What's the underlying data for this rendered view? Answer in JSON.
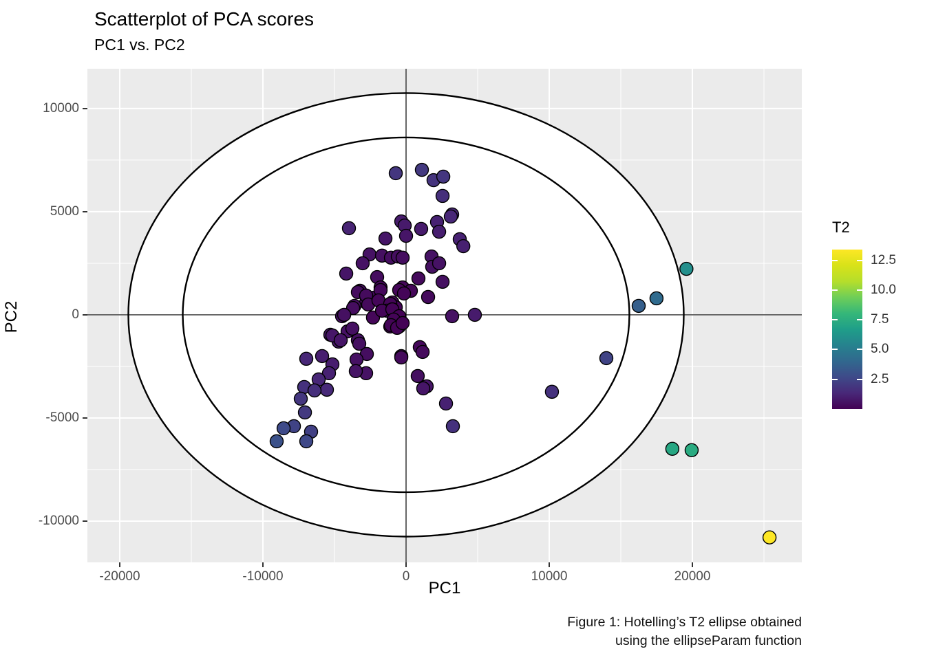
{
  "title": "Scatterplot of PCA scores",
  "subtitle": "PC1 vs. PC2",
  "caption_line1": "Figure 1: Hotelling’s T2 ellipse obtained",
  "caption_line2": "using the ellipseParam function",
  "colors": {
    "panel_bg": "#EBEBEB",
    "grid": "#FFFFFF",
    "axis_text": "#4D4D4D",
    "tick_mark": "#333333",
    "ellipse_fill": "#FFFFFF",
    "outline": "#000000"
  },
  "chart_data": {
    "type": "scatter",
    "title": "Scatterplot of PCA scores",
    "subtitle": "PC1 vs. PC2",
    "xlabel": "PC1",
    "ylabel": "PC2",
    "xlim": [
      -22260,
      27645
    ],
    "ylim": [
      -12000,
      11930
    ],
    "grid": true,
    "x_major_ticks": [
      -20000,
      -10000,
      0,
      10000,
      20000
    ],
    "x_tick_labels": [
      "-20000",
      "-10000",
      "0",
      "10000",
      "20000"
    ],
    "x_minor_ticks": [
      -15000,
      -5000,
      5000,
      15000,
      25000
    ],
    "y_major_ticks": [
      -10000,
      -5000,
      0,
      5000,
      10000
    ],
    "y_tick_labels": [
      "-10000",
      "-5000",
      "0",
      "5000",
      "10000"
    ],
    "y_minor_ticks": [
      -7500,
      -2500,
      2500,
      7500
    ],
    "reference_lines": {
      "h": 0,
      "v": 0
    },
    "ellipses": [
      {
        "name": "hotelling-99",
        "cx": 0,
        "cy": 0,
        "rx": 19400,
        "ry": 10750
      },
      {
        "name": "hotelling-95",
        "cx": 0,
        "cy": 0,
        "rx": 15600,
        "ry": 8600
      }
    ],
    "legend": {
      "title": "T2",
      "position": "right",
      "domain": [
        0,
        13.4
      ],
      "ticks": [
        2.5,
        5.0,
        7.5,
        10.0,
        12.5
      ],
      "tick_labels": [
        "2.5",
        "5.0",
        "7.5",
        "10.0",
        "12.5"
      ]
    },
    "colormap": {
      "name": "viridis",
      "stops": [
        [
          0.0,
          "#440154"
        ],
        [
          0.1,
          "#482878"
        ],
        [
          0.2,
          "#3e4a89"
        ],
        [
          0.3,
          "#31688e"
        ],
        [
          0.4,
          "#26828e"
        ],
        [
          0.5,
          "#1f9e89"
        ],
        [
          0.6,
          "#35b779"
        ],
        [
          0.7,
          "#6ece58"
        ],
        [
          0.8,
          "#b5de2b"
        ],
        [
          0.9,
          "#d8e219"
        ],
        [
          1.0,
          "#fde725"
        ]
      ]
    },
    "points_format": [
      "PC1",
      "PC2",
      "T2"
    ],
    "points": [
      [
        -720,
        6865,
        1.9
      ],
      [
        1105,
        7030,
        2.0
      ],
      [
        1920,
        6530,
        1.8
      ],
      [
        2600,
        6700,
        1.9
      ],
      [
        2550,
        5765,
        1.6
      ],
      [
        3220,
        4865,
        1.3
      ],
      [
        -335,
        4530,
        0.9
      ],
      [
        -95,
        4330,
        0.85
      ],
      [
        1055,
        4165,
        0.9
      ],
      [
        2165,
        4500,
        1.1
      ],
      [
        2310,
        4030,
        1.0
      ],
      [
        3125,
        4765,
        1.3
      ],
      [
        -3990,
        4200,
        1.2
      ],
      [
        0,
        3830,
        0.7
      ],
      [
        -1440,
        3700,
        0.7
      ],
      [
        3750,
        3665,
        1.1
      ],
      [
        4000,
        3330,
        1.05
      ],
      [
        -2550,
        2930,
        0.6
      ],
      [
        -1680,
        2870,
        0.5
      ],
      [
        -1055,
        2770,
        0.45
      ],
      [
        -575,
        2830,
        0.45
      ],
      [
        -240,
        2770,
        0.4
      ],
      [
        -3030,
        2500,
        0.6
      ],
      [
        -4180,
        2000,
        0.7
      ],
      [
        -2020,
        1830,
        0.4
      ],
      [
        1780,
        2830,
        0.6
      ],
      [
        1825,
        2330,
        0.5
      ],
      [
        2310,
        2500,
        0.6
      ],
      [
        865,
        1765,
        0.3
      ],
      [
        2550,
        1600,
        0.5
      ],
      [
        -1780,
        1330,
        0.25
      ],
      [
        -3220,
        1165,
        0.4
      ],
      [
        -240,
        1330,
        0.2
      ],
      [
        335,
        1165,
        0.2
      ],
      [
        1540,
        865,
        0.3
      ],
      [
        -2790,
        600,
        0.3
      ],
      [
        -2260,
        830,
        0.28
      ],
      [
        -960,
        600,
        0.15
      ],
      [
        -720,
        365,
        0.12
      ],
      [
        -3365,
        1100,
        0.42
      ],
      [
        -2790,
        935,
        0.35
      ],
      [
        -2645,
        500,
        0.3
      ],
      [
        -1780,
        1200,
        0.25
      ],
      [
        -1925,
        700,
        0.2
      ],
      [
        -1105,
        535,
        0.14
      ],
      [
        -480,
        1200,
        0.18
      ],
      [
        -145,
        1035,
        0.15
      ],
      [
        -3605,
        435,
        0.4
      ],
      [
        -1345,
        200,
        0.12
      ],
      [
        -4470,
        -65,
        0.55
      ],
      [
        -3700,
        330,
        0.42
      ],
      [
        -4325,
        0,
        0.5
      ],
      [
        -2310,
        -130,
        0.2
      ],
      [
        -1680,
        200,
        0.15
      ],
      [
        -960,
        265,
        0.12
      ],
      [
        -480,
        -65,
        0.08
      ],
      [
        3220,
        -65,
        0.55
      ],
      [
        4805,
        0,
        0.9
      ],
      [
        -865,
        -230,
        0.1
      ],
      [
        -1105,
        -565,
        0.12
      ],
      [
        -480,
        -565,
        0.1
      ],
      [
        -5290,
        -965,
        0.8
      ],
      [
        -4710,
        -1300,
        0.75
      ],
      [
        -4085,
        -800,
        0.6
      ],
      [
        -3365,
        -1230,
        0.5
      ],
      [
        -1055,
        -500,
        0.1
      ],
      [
        -625,
        -630,
        0.1
      ],
      [
        -240,
        -400,
        0.08
      ],
      [
        960,
        -1565,
        0.25
      ],
      [
        -335,
        -2000,
        0.3
      ],
      [
        -3750,
        -665,
        0.5
      ],
      [
        -5145,
        -1000,
        0.75
      ],
      [
        -4565,
        -1230,
        0.7
      ],
      [
        -3270,
        -1400,
        0.5
      ],
      [
        -2740,
        -1900,
        0.45
      ],
      [
        -3460,
        -2165,
        0.55
      ],
      [
        -2790,
        -2830,
        0.6
      ],
      [
        -3510,
        -2730,
        0.65
      ],
      [
        -6970,
        -2130,
        1.3
      ],
      [
        -5865,
        -2000,
        1.0
      ],
      [
        -5145,
        -2400,
        0.95
      ],
      [
        -5385,
        -2830,
        1.1
      ],
      [
        -6105,
        -3130,
        1.3
      ],
      [
        -5530,
        -3630,
        1.4
      ],
      [
        -7115,
        -3500,
        1.7
      ],
      [
        -6395,
        -3665,
        1.6
      ],
      [
        -7355,
        -4065,
        1.9
      ],
      [
        -7065,
        -4730,
        2.0
      ],
      [
        -7835,
        -5400,
        2.4
      ],
      [
        -8555,
        -5500,
        2.7
      ],
      [
        -9040,
        -6130,
        3.0
      ],
      [
        -6635,
        -5665,
        2.3
      ],
      [
        -6970,
        -6130,
        2.6
      ],
      [
        1155,
        -1800,
        0.3
      ],
      [
        815,
        -2965,
        0.5
      ],
      [
        1440,
        -3465,
        0.7
      ],
      [
        1200,
        -3565,
        0.7
      ],
      [
        2790,
        -4300,
        1.1
      ],
      [
        3270,
        -5400,
        1.7
      ],
      [
        -335,
        -2065,
        0.3
      ],
      [
        13990,
        -2100,
        2.4
      ],
      [
        10190,
        -3730,
        1.7
      ],
      [
        18600,
        -6495,
        7.2
      ],
      [
        19950,
        -6560,
        7.4
      ],
      [
        19585,
        2230,
        6.0
      ],
      [
        17495,
        800,
        4.2
      ],
      [
        16250,
        435,
        3.6
      ],
      [
        25390,
        -10790,
        13.4
      ]
    ]
  }
}
